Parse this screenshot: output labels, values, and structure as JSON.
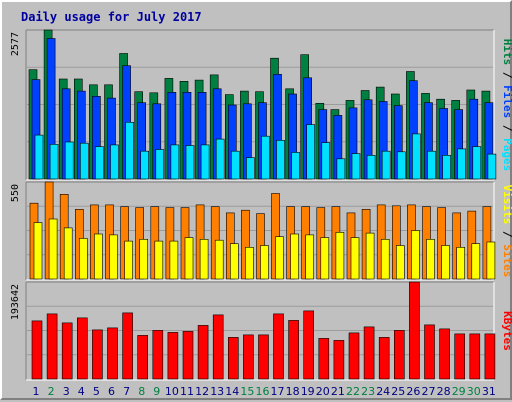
{
  "title": "Daily usage for July 2017",
  "colors": {
    "background": "#c0c0c0",
    "title": "#0000a0",
    "hits": "#008040",
    "files": "#0040ff",
    "pages": "#00e0ff",
    "visits": "#ffff00",
    "sites": "#ff8000",
    "kbytes": "#ff0000",
    "day_weekday": "#000080",
    "day_weekend": "#008040"
  },
  "chart_data": [
    {
      "type": "bar",
      "name": "hits-files-pages",
      "y_max": 2577,
      "y_max_label": "2577",
      "legend": [
        "Pages",
        "Files",
        "Hits"
      ],
      "categories": [
        "1",
        "2",
        "3",
        "4",
        "5",
        "6",
        "7",
        "8",
        "9",
        "10",
        "11",
        "12",
        "13",
        "14",
        "15",
        "16",
        "17",
        "18",
        "19",
        "20",
        "21",
        "22",
        "23",
        "24",
        "25",
        "26",
        "27",
        "28",
        "29",
        "30",
        "31"
      ],
      "weekend_days": [
        "2",
        "8",
        "9",
        "15",
        "16",
        "22",
        "23",
        "29",
        "30"
      ],
      "series": [
        {
          "name": "Hits",
          "values": [
            1890,
            2577,
            1730,
            1730,
            1630,
            1630,
            2170,
            1510,
            1490,
            1740,
            1690,
            1710,
            1800,
            1460,
            1520,
            1510,
            2090,
            1560,
            2150,
            1310,
            1200,
            1360,
            1530,
            1590,
            1470,
            1860,
            1480,
            1380,
            1360,
            1540,
            1520
          ]
        },
        {
          "name": "Files",
          "values": [
            1720,
            2430,
            1560,
            1520,
            1430,
            1400,
            1960,
            1320,
            1300,
            1500,
            1500,
            1500,
            1560,
            1280,
            1300,
            1320,
            1810,
            1470,
            1750,
            1200,
            1100,
            1230,
            1370,
            1340,
            1270,
            1700,
            1320,
            1220,
            1200,
            1380,
            1320
          ]
        },
        {
          "name": "Pages",
          "values": [
            760,
            600,
            640,
            620,
            560,
            590,
            980,
            480,
            510,
            590,
            580,
            590,
            690,
            480,
            370,
            740,
            670,
            460,
            940,
            630,
            350,
            440,
            410,
            480,
            470,
            780,
            480,
            410,
            520,
            560,
            430
          ]
        }
      ]
    },
    {
      "type": "bar",
      "name": "sites-visits",
      "y_max": 550,
      "y_max_label": "550",
      "legend": [
        "Sites",
        "Visits"
      ],
      "categories": [
        "1",
        "2",
        "3",
        "4",
        "5",
        "6",
        "7",
        "8",
        "9",
        "10",
        "11",
        "12",
        "13",
        "14",
        "15",
        "16",
        "17",
        "18",
        "19",
        "20",
        "21",
        "22",
        "23",
        "24",
        "25",
        "26",
        "27",
        "28",
        "29",
        "30",
        "31"
      ],
      "series": [
        {
          "name": "Sites",
          "values": [
            430,
            550,
            480,
            395,
            420,
            420,
            410,
            405,
            410,
            405,
            405,
            420,
            410,
            375,
            390,
            370,
            485,
            410,
            410,
            405,
            410,
            375,
            395,
            420,
            415,
            420,
            410,
            405,
            375,
            385,
            410
          ]
        },
        {
          "name": "Visits",
          "values": [
            320,
            340,
            290,
            230,
            255,
            250,
            215,
            225,
            215,
            215,
            235,
            225,
            220,
            200,
            180,
            190,
            240,
            255,
            250,
            235,
            265,
            235,
            260,
            225,
            190,
            275,
            225,
            190,
            180,
            200,
            210
          ]
        }
      ]
    },
    {
      "type": "bar",
      "name": "kbytes",
      "y_max": 193642,
      "y_max_label": "193642",
      "legend": [
        "KBytes"
      ],
      "categories": [
        "1",
        "2",
        "3",
        "4",
        "5",
        "6",
        "7",
        "8",
        "9",
        "10",
        "11",
        "12",
        "13",
        "14",
        "15",
        "16",
        "17",
        "18",
        "19",
        "20",
        "21",
        "22",
        "23",
        "24",
        "25",
        "26",
        "27",
        "28",
        "29",
        "30",
        "31"
      ],
      "series": [
        {
          "name": "KBytes",
          "values": [
            116000,
            130000,
            112000,
            122000,
            98000,
            102000,
            132000,
            87000,
            97000,
            93000,
            95000,
            107000,
            128000,
            83000,
            88000,
            88000,
            130000,
            117000,
            136000,
            81000,
            77000,
            92000,
            104000,
            83000,
            97000,
            193642,
            108000,
            100000,
            90000,
            90000,
            90000
          ]
        }
      ]
    }
  ]
}
